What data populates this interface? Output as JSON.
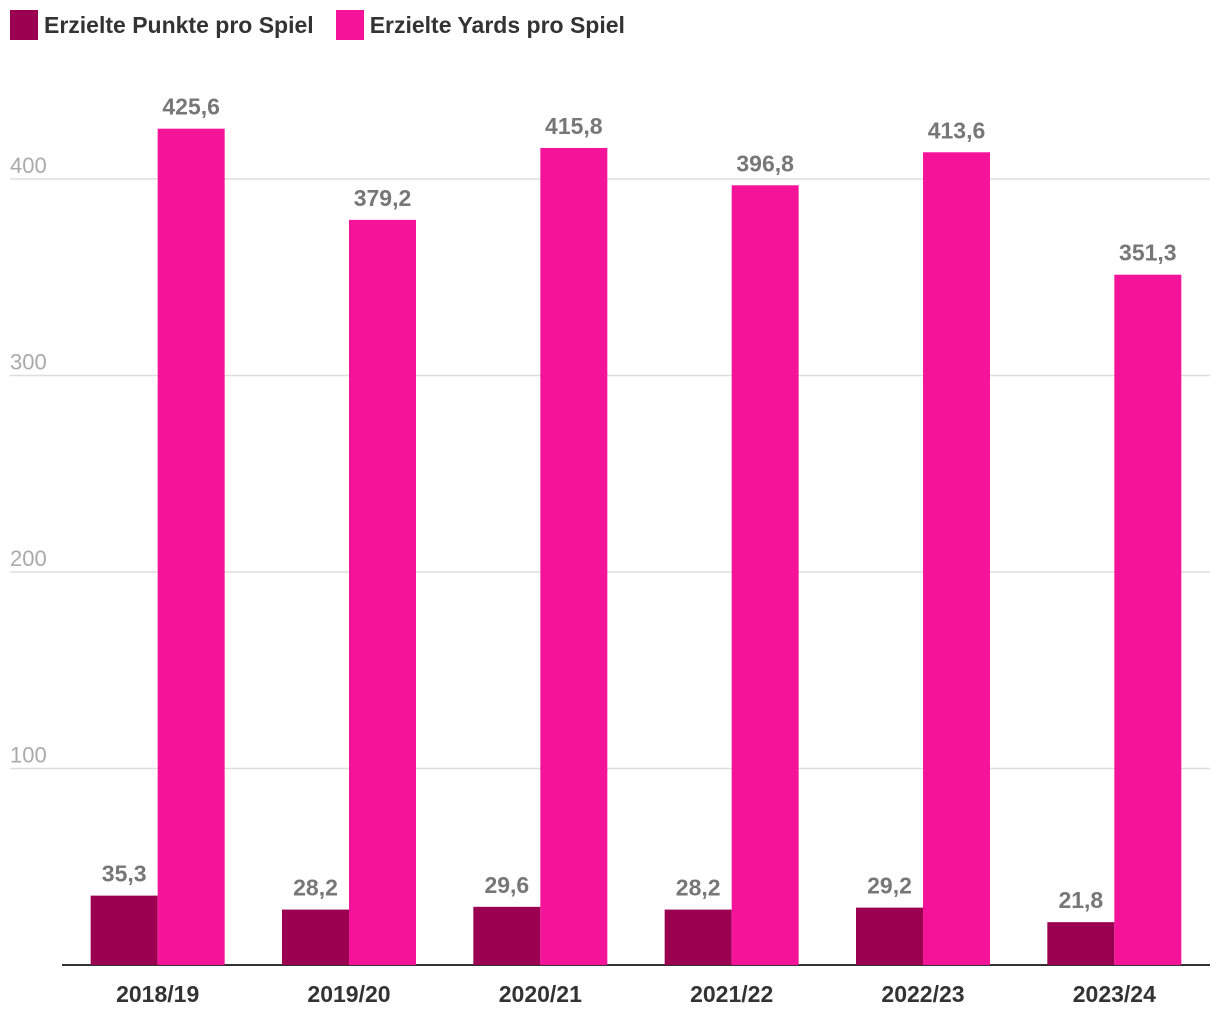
{
  "chart_data": {
    "type": "bar",
    "categories": [
      "2018/19",
      "2019/20",
      "2020/21",
      "2021/22",
      "2022/23",
      "2023/24"
    ],
    "series": [
      {
        "name": "Erzielte Punkte pro Spiel",
        "values": [
          35.3,
          28.2,
          29.6,
          28.2,
          29.2,
          21.8
        ],
        "labels": [
          "35,3",
          "28,2",
          "29,6",
          "28,2",
          "29,2",
          "21,8"
        ]
      },
      {
        "name": "Erzielte Yards pro Spiel",
        "values": [
          425.6,
          379.2,
          415.8,
          396.8,
          413.6,
          351.3
        ],
        "labels": [
          "425,6",
          "379,2",
          "415,8",
          "396,8",
          "413,6",
          "351,3"
        ]
      }
    ],
    "yticks": [
      100,
      200,
      300,
      400
    ],
    "ylim": [
      0,
      440
    ],
    "grid": true,
    "legend_position": "top-left",
    "colors": [
      "#9b0050",
      "#f5139a"
    ]
  }
}
